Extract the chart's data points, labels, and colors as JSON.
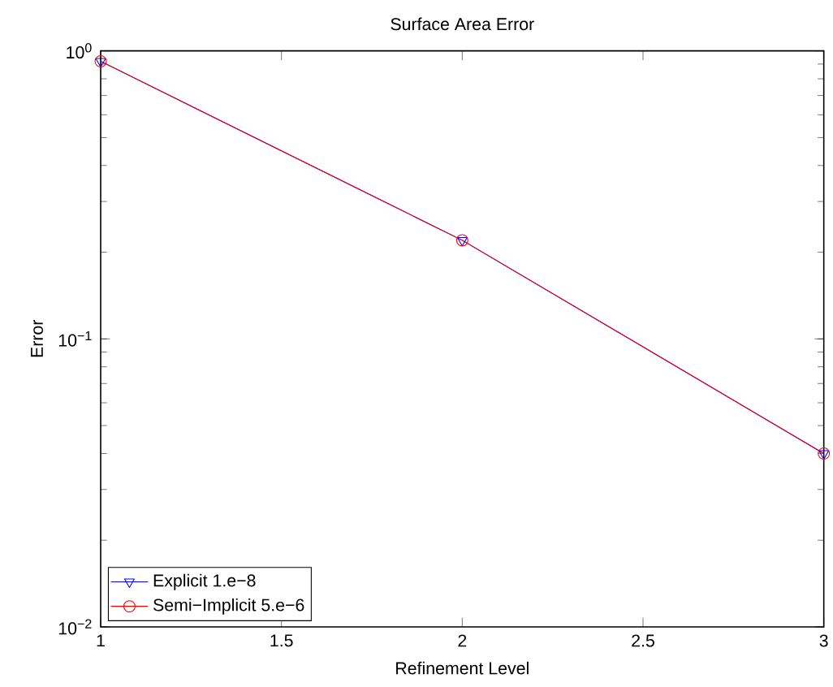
{
  "chart_data": {
    "type": "line",
    "title": "Surface Area Error",
    "xlabel": "Refinement Level",
    "ylabel": "Error",
    "x": [
      1,
      2,
      3
    ],
    "series": [
      {
        "name": "Explicit 1.e−8",
        "color": "#0000ff",
        "marker": "triangle",
        "values": [
          0.92,
          0.22,
          0.04
        ]
      },
      {
        "name": "Semi−Implicit 5.e−6",
        "color": "#ff0000",
        "marker": "circle",
        "values": [
          0.92,
          0.22,
          0.04
        ]
      }
    ],
    "log": "y",
    "xlim": [
      1,
      3
    ],
    "ylim": [
      0.01,
      1
    ],
    "xticks": [
      1,
      1.5,
      2,
      2.5,
      3
    ],
    "yticks": [
      {
        "value": 0.01,
        "label": "10$^{−2}$"
      },
      {
        "value": 0.1,
        "label": "10$^{−1}$"
      },
      {
        "value": 1,
        "label": "10$^{0}$"
      }
    ],
    "legend": "bottom left",
    "grid": false
  }
}
